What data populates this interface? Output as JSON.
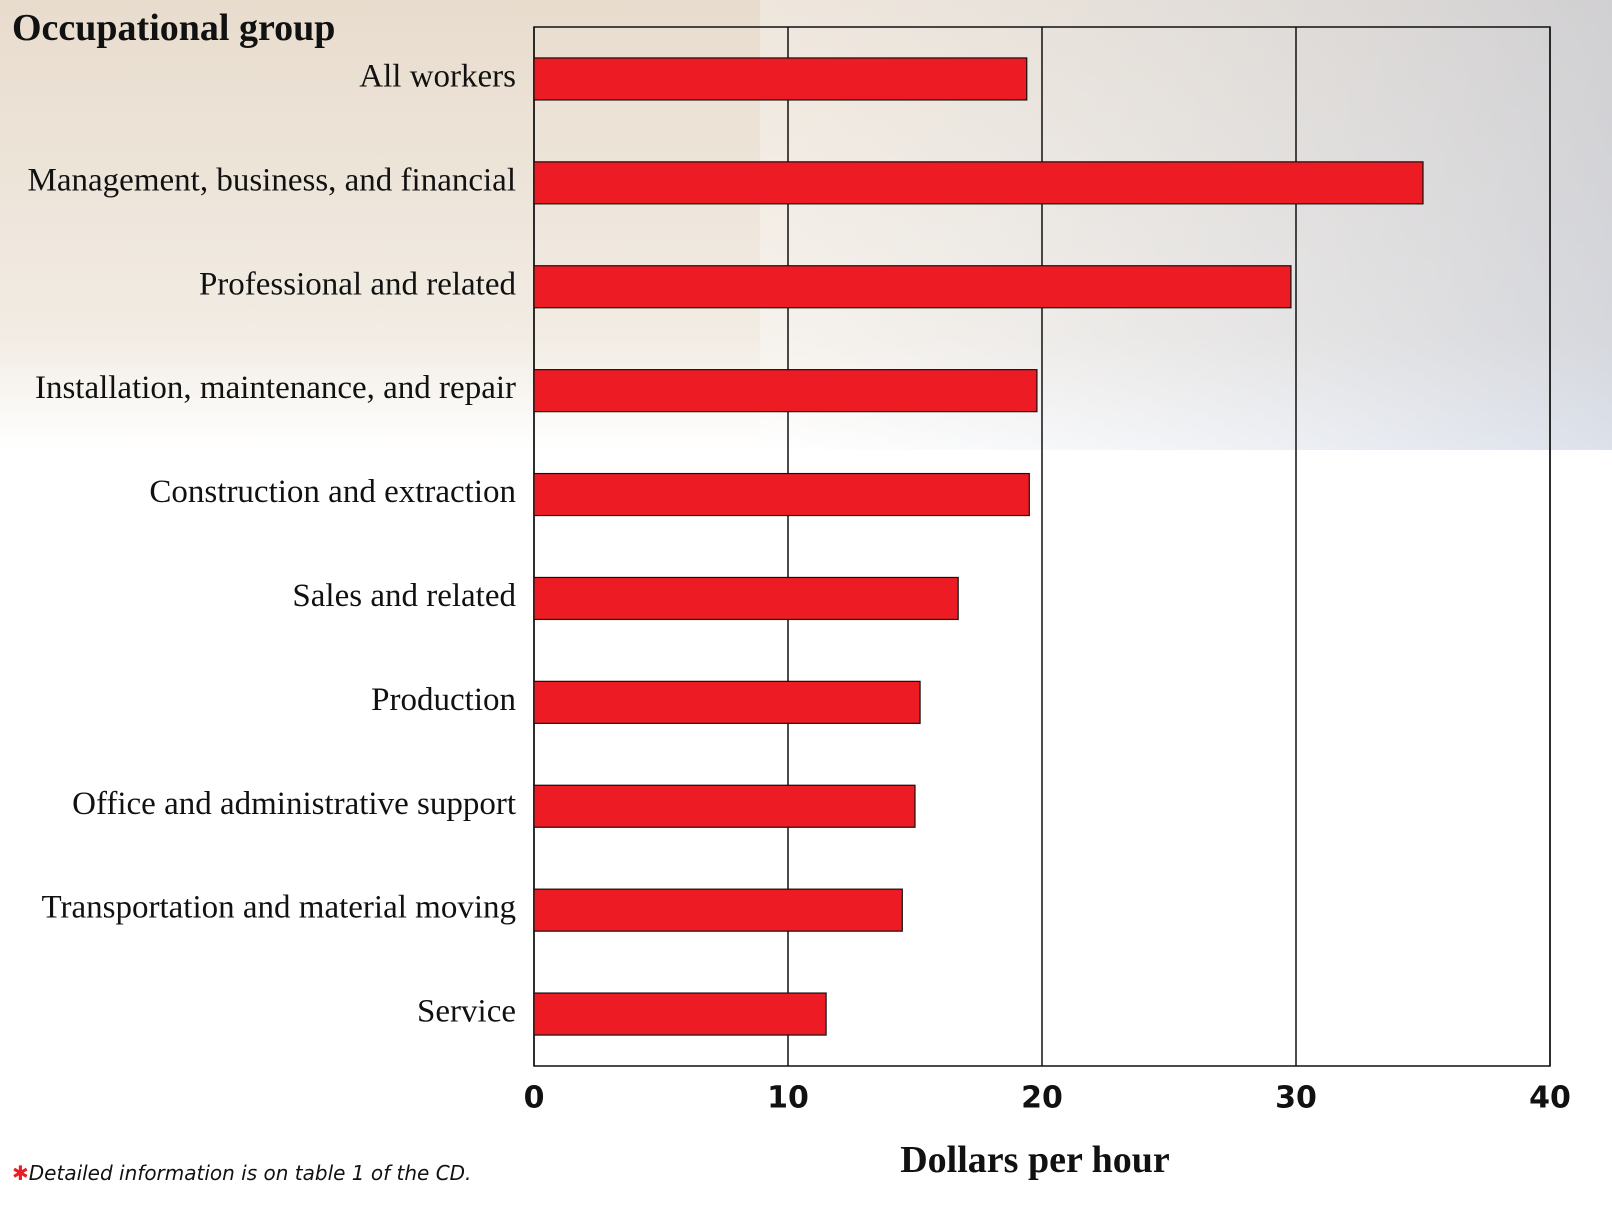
{
  "chart_data": {
    "type": "bar",
    "orientation": "horizontal",
    "y_axis_title": "Occupational group",
    "x_axis_title": "Dollars per hour",
    "categories": [
      "All workers",
      "Management, business, and financial",
      "Professional and related",
      "Installation, maintenance, and repair",
      "Construction and extraction",
      "Sales and related",
      "Production",
      "Office and administrative support",
      "Transportation and material moving",
      "Service"
    ],
    "values": [
      19.4,
      35.0,
      29.8,
      19.8,
      19.5,
      16.7,
      15.2,
      15.0,
      14.5,
      11.5
    ],
    "color": "#ed1c24",
    "xlim": [
      0,
      40
    ],
    "xticks": [
      0,
      10,
      20,
      30,
      40
    ],
    "grid": true,
    "footnote_marker": "✱",
    "footnote": "Detailed information is on table 1 of the CD."
  }
}
